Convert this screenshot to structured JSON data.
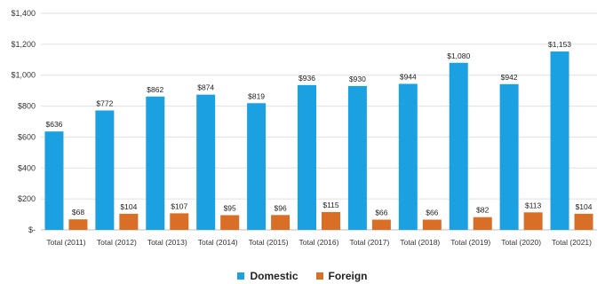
{
  "chart_data": {
    "type": "bar",
    "categories": [
      "Total (2011)",
      "Total (2012)",
      "Total (2013)",
      "Total (2014)",
      "Total (2015)",
      "Total (2016)",
      "Total (2017)",
      "Total (2018)",
      "Total (2019)",
      "Total (2020)",
      "Total (2021)"
    ],
    "series": [
      {
        "name": "Domestic",
        "color": "#1BA1E2",
        "values": [
          636,
          772,
          862,
          874,
          819,
          936,
          930,
          944,
          1080,
          942,
          1153
        ],
        "labels": [
          "$636",
          "$772",
          "$862",
          "$874",
          "$819",
          "$936",
          "$930",
          "$944",
          "$1,080",
          "$942",
          "$1,153"
        ]
      },
      {
        "name": "Foreign",
        "color": "#D96F27",
        "values": [
          68,
          104,
          107,
          95,
          96,
          115,
          66,
          66,
          82,
          113,
          104
        ],
        "labels": [
          "$68",
          "$104",
          "$107",
          "$95",
          "$96",
          "$115",
          "$66",
          "$66",
          "$82",
          "$113",
          "$104"
        ]
      }
    ],
    "ylim": [
      0,
      1400
    ],
    "yticks": [
      0,
      200,
      400,
      600,
      800,
      1000,
      1200,
      1400
    ],
    "ytick_labels": [
      "$-",
      "$200",
      "$400",
      "$600",
      "$800",
      "$1,000",
      "$1,200",
      "$1,400"
    ],
    "grid": true,
    "legend_position": "bottom"
  }
}
